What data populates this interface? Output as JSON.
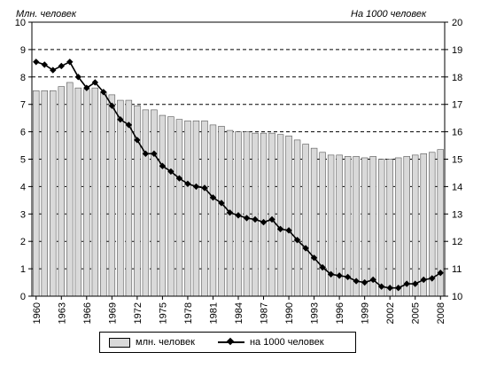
{
  "chart_data": {
    "type": "bar",
    "ylabel_left": "Млн. человек",
    "ylabel_right": "На 1000 человек",
    "ylim_left": [
      0,
      10
    ],
    "ylim_right": [
      10,
      20
    ],
    "yticks_left": [
      "0",
      "1",
      "2",
      "3",
      "4",
      "5",
      "6",
      "7",
      "8",
      "9",
      "10"
    ],
    "yticks_right": [
      "10",
      "11",
      "12",
      "13",
      "14",
      "15",
      "16",
      "17",
      "18",
      "19",
      "20"
    ],
    "x_ticks": [
      "1960",
      "1963",
      "1966",
      "1969",
      "1972",
      "1975",
      "1978",
      "1981",
      "1984",
      "1987",
      "1990",
      "1993",
      "1996",
      "1999",
      "2002",
      "2005",
      "2008"
    ],
    "categories": [
      1960,
      1961,
      1962,
      1963,
      1964,
      1965,
      1966,
      1967,
      1968,
      1969,
      1970,
      1971,
      1972,
      1973,
      1974,
      1975,
      1976,
      1977,
      1978,
      1979,
      1980,
      1981,
      1982,
      1983,
      1984,
      1985,
      1986,
      1987,
      1988,
      1989,
      1990,
      1991,
      1992,
      1993,
      1994,
      1995,
      1996,
      1997,
      1998,
      1999,
      2000,
      2001,
      2002,
      2003,
      2004,
      2005,
      2006,
      2007,
      2008
    ],
    "grid": "horizontal dashed",
    "legend_position": "bottom",
    "series": [
      {
        "name": "млн. человек",
        "type": "bar",
        "axis": "left",
        "color": "#d9d9d9",
        "values": [
          7.5,
          7.5,
          7.5,
          7.65,
          7.8,
          7.6,
          7.55,
          7.6,
          7.45,
          7.35,
          7.15,
          7.15,
          6.95,
          6.8,
          6.8,
          6.6,
          6.55,
          6.45,
          6.4,
          6.4,
          6.4,
          6.25,
          6.2,
          6.05,
          6.0,
          6.0,
          5.95,
          5.95,
          5.95,
          5.9,
          5.85,
          5.7,
          5.55,
          5.4,
          5.25,
          5.15,
          5.15,
          5.1,
          5.1,
          5.05,
          5.1,
          5.0,
          5.0,
          5.05,
          5.1,
          5.15,
          5.2,
          5.25,
          5.35
        ]
      },
      {
        "name": "на 1000 человек",
        "type": "line",
        "axis": "right",
        "color": "#000000",
        "values": [
          18.55,
          18.45,
          18.25,
          18.4,
          18.55,
          18.0,
          17.6,
          17.8,
          17.45,
          16.95,
          16.45,
          16.25,
          15.7,
          15.2,
          15.2,
          14.75,
          14.55,
          14.3,
          14.1,
          14.0,
          13.95,
          13.6,
          13.4,
          13.05,
          12.95,
          12.85,
          12.8,
          12.7,
          12.8,
          12.45,
          12.4,
          12.05,
          11.75,
          11.4,
          11.05,
          10.8,
          10.75,
          10.7,
          10.55,
          10.5,
          10.6,
          10.35,
          10.3,
          10.3,
          10.45,
          10.45,
          10.6,
          10.65,
          10.85
        ]
      }
    ]
  }
}
